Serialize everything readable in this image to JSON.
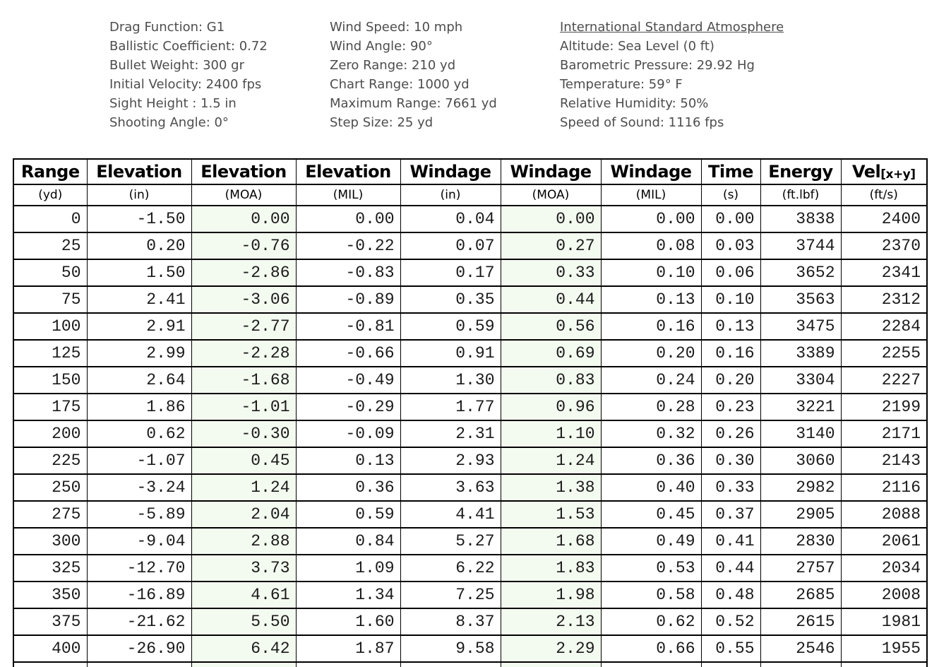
{
  "settings": {
    "projectile": {
      "drag_function": "Drag Function: G1",
      "ballistic_coefficient": "Ballistic Coefficient: 0.72",
      "bullet_weight": "Bullet Weight: 300 gr",
      "initial_velocity": "Initial Velocity: 2400 fps",
      "sight_height": "Sight Height : 1.5 in",
      "shooting_angle": "Shooting Angle: 0°"
    },
    "conditions": {
      "wind_speed": "Wind Speed: 10 mph",
      "wind_angle": "Wind Angle: 90°",
      "zero_range": "Zero Range: 210 yd",
      "chart_range": "Chart Range: 1000 yd",
      "maximum_range": "Maximum Range: 7661 yd",
      "step_size": "Step Size: 25 yd"
    },
    "atmosphere": {
      "title": "International Standard Atmosphere",
      "altitude": "Altitude: Sea Level (0 ft)",
      "barometric_pressure": "Barometric Pressure: 29.92 Hg",
      "temperature": "Temperature: 59° F",
      "relative_humidity": "Relative Humidity: 50%",
      "speed_of_sound": "Speed of Sound: 1116 fps"
    }
  },
  "table": {
    "headers": [
      "Range",
      "Elevation",
      "Elevation",
      "Elevation",
      "Windage",
      "Windage",
      "Windage",
      "Time",
      "Energy",
      "Vel"
    ],
    "vel_subscript": "[x+y]",
    "units": [
      "(yd)",
      "(in)",
      "(MOA)",
      "(MIL)",
      "(in)",
      "(MOA)",
      "(MIL)",
      "(s)",
      "(ft.lbf)",
      "(ft/s)"
    ],
    "rows": [
      [
        "0",
        "-1.50",
        "0.00",
        "0.00",
        "0.04",
        "0.00",
        "0.00",
        "0.00",
        "3838",
        "2400"
      ],
      [
        "25",
        "0.20",
        "-0.76",
        "-0.22",
        "0.07",
        "0.27",
        "0.08",
        "0.03",
        "3744",
        "2370"
      ],
      [
        "50",
        "1.50",
        "-2.86",
        "-0.83",
        "0.17",
        "0.33",
        "0.10",
        "0.06",
        "3652",
        "2341"
      ],
      [
        "75",
        "2.41",
        "-3.06",
        "-0.89",
        "0.35",
        "0.44",
        "0.13",
        "0.10",
        "3563",
        "2312"
      ],
      [
        "100",
        "2.91",
        "-2.77",
        "-0.81",
        "0.59",
        "0.56",
        "0.16",
        "0.13",
        "3475",
        "2284"
      ],
      [
        "125",
        "2.99",
        "-2.28",
        "-0.66",
        "0.91",
        "0.69",
        "0.20",
        "0.16",
        "3389",
        "2255"
      ],
      [
        "150",
        "2.64",
        "-1.68",
        "-0.49",
        "1.30",
        "0.83",
        "0.24",
        "0.20",
        "3304",
        "2227"
      ],
      [
        "175",
        "1.86",
        "-1.01",
        "-0.29",
        "1.77",
        "0.96",
        "0.28",
        "0.23",
        "3221",
        "2199"
      ],
      [
        "200",
        "0.62",
        "-0.30",
        "-0.09",
        "2.31",
        "1.10",
        "0.32",
        "0.26",
        "3140",
        "2171"
      ],
      [
        "225",
        "-1.07",
        "0.45",
        "0.13",
        "2.93",
        "1.24",
        "0.36",
        "0.30",
        "3060",
        "2143"
      ],
      [
        "250",
        "-3.24",
        "1.24",
        "0.36",
        "3.63",
        "1.38",
        "0.40",
        "0.33",
        "2982",
        "2116"
      ],
      [
        "275",
        "-5.89",
        "2.04",
        "0.59",
        "4.41",
        "1.53",
        "0.45",
        "0.37",
        "2905",
        "2088"
      ],
      [
        "300",
        "-9.04",
        "2.88",
        "0.84",
        "5.27",
        "1.68",
        "0.49",
        "0.41",
        "2830",
        "2061"
      ],
      [
        "325",
        "-12.70",
        "3.73",
        "1.09",
        "6.22",
        "1.83",
        "0.53",
        "0.44",
        "2757",
        "2034"
      ],
      [
        "350",
        "-16.89",
        "4.61",
        "1.34",
        "7.25",
        "1.98",
        "0.58",
        "0.48",
        "2685",
        "2008"
      ],
      [
        "375",
        "-21.62",
        "5.50",
        "1.60",
        "8.37",
        "2.13",
        "0.62",
        "0.52",
        "2615",
        "1981"
      ],
      [
        "400",
        "-26.90",
        "6.42",
        "1.87",
        "9.58",
        "2.29",
        "0.66",
        "0.55",
        "2546",
        "1955"
      ]
    ]
  },
  "colors": {
    "moa_column_tint": "#f3faef",
    "table_border": "#000000",
    "params_text": "#4d4d4d",
    "cell_text": "#1a1a1a"
  }
}
